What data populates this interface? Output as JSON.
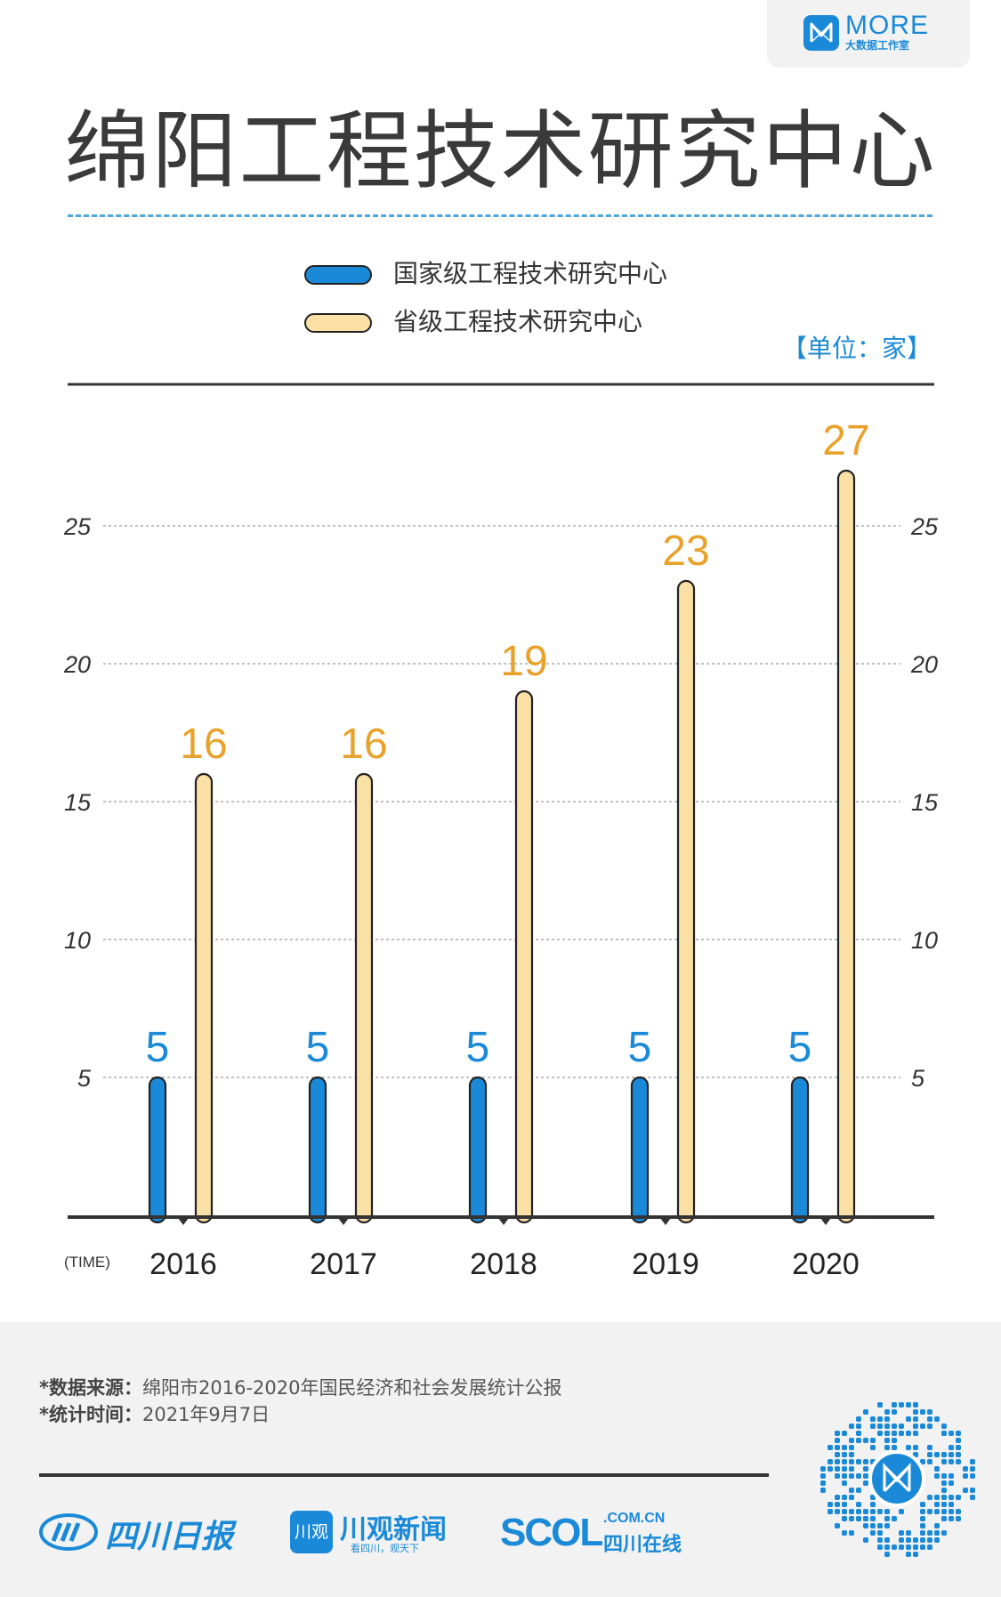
{
  "logo": {
    "name": "MORE",
    "subtitle": "大数据工作室",
    "icon": "m-monogram-icon"
  },
  "title": "绵阳工程技术研究中心",
  "legend": [
    {
      "label": "国家级工程技术研究中心",
      "color": "#1a8ad8"
    },
    {
      "label": "省级工程技术研究中心",
      "color": "#fbe0a6"
    }
  ],
  "unit": "【单位：家】",
  "chart_data": {
    "type": "bar",
    "title": "绵阳工程技术研究中心",
    "x_axis_label": "(TIME)",
    "categories": [
      "2016",
      "2017",
      "2018",
      "2019",
      "2020"
    ],
    "series": [
      {
        "name": "国家级工程技术研究中心",
        "values": [
          5,
          5,
          5,
          5,
          5
        ],
        "color": "#1a8ad8",
        "label_color": "#1a8ad8"
      },
      {
        "name": "省级工程技术研究中心",
        "values": [
          16,
          16,
          19,
          23,
          27
        ],
        "color": "#fbe0a6",
        "label_color": "#e8a22c"
      }
    ],
    "y_ticks": [
      5,
      10,
      15,
      20,
      25
    ],
    "ylim": [
      0,
      27
    ],
    "grid": true,
    "unit": "家"
  },
  "footer": {
    "source_label": "*数据来源：",
    "source_text": "绵阳市2016-2020年国民经济和社会发展统计公报",
    "time_label": "*统计时间：",
    "time_text": "2021年9月7日",
    "brands": [
      {
        "name": "四川日报",
        "icon": "sichuan-daily-logo-icon"
      },
      {
        "name": "川观新闻",
        "badge": "川观",
        "slogan": "看四川，观天下"
      },
      {
        "name": "SCOL",
        "domain": ".COM.CN",
        "sub": "四川在线"
      }
    ],
    "qr_icon": "qr-code-icon"
  }
}
